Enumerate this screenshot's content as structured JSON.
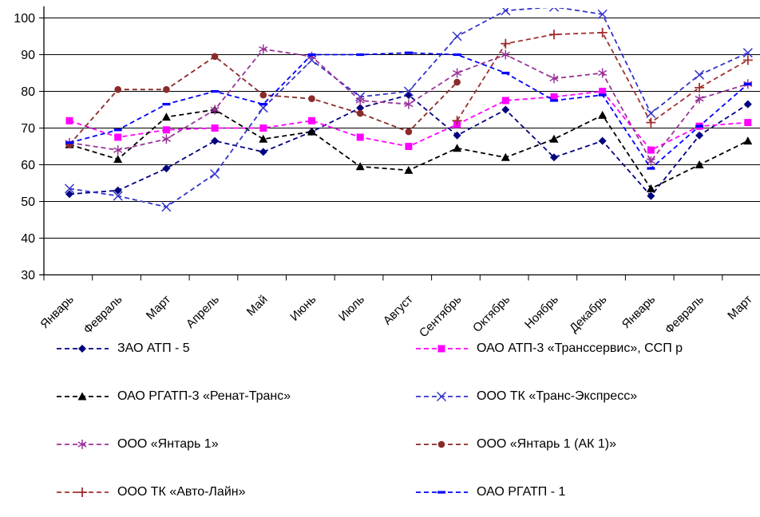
{
  "chart_data": {
    "type": "line",
    "title": "",
    "xlabel": "",
    "ylabel": "",
    "grid": true,
    "legend_position": "bottom-two-columns",
    "categories": [
      "Январь",
      "Февраль",
      "Март",
      "Апрель",
      "Май",
      "Июнь",
      "Июль",
      "Август",
      "Сентябрь",
      "Октябрь",
      "Ноябрь",
      "Декабрь",
      "Январь",
      "Февраль",
      "Март"
    ],
    "y_axis": {
      "min": 30,
      "max": 100,
      "step": 10,
      "ticks": [
        "30",
        "40",
        "50",
        "60",
        "70",
        "80",
        "90",
        "100"
      ]
    },
    "line_style": "dashed",
    "series": [
      {
        "name": "ЗАО АТП - 5",
        "color": "#000080",
        "marker": "diamond",
        "values": [
          52,
          53,
          59,
          66.5,
          63.5,
          69,
          75.5,
          79,
          68,
          75,
          62,
          66.5,
          51.5,
          68,
          76.5
        ]
      },
      {
        "name": "ОАО АТП-3 «Транссервис», ССП р",
        "color": "#FF00FF",
        "marker": "square",
        "values": [
          72,
          67.5,
          69.5,
          70,
          70,
          72,
          67.5,
          65,
          71,
          77.5,
          78.5,
          80,
          64,
          70.5,
          71.5
        ]
      },
      {
        "name": "ОАО РГАТП-3 «Ренат-Транс»",
        "color": "#000000",
        "marker": "triangle",
        "values": [
          65.5,
          61.5,
          73,
          75,
          67,
          69,
          59.5,
          58.5,
          64.5,
          62,
          67,
          73.5,
          53.5,
          60,
          66.5
        ]
      },
      {
        "name": "ООО ТК «Транс-Экспресс»",
        "color": "#3333CC",
        "marker": "x",
        "values": [
          53.5,
          51.5,
          48.5,
          57.5,
          75.5,
          88.5,
          78.5,
          80,
          95,
          102,
          103,
          101,
          74,
          84.5,
          90.5
        ]
      },
      {
        "name": "ООО «Янтарь 1»",
        "color": "#993399",
        "marker": "asterisk",
        "values": [
          66,
          64,
          67,
          75,
          91.5,
          89.5,
          77.5,
          76.5,
          85,
          90,
          83.5,
          85,
          61,
          78,
          82
        ]
      },
      {
        "name": "ООО «Янтарь 1 (АК 1)»",
        "color": "#8B2A2A",
        "marker": "circle",
        "values": [
          65.5,
          80.5,
          80.5,
          89.5,
          79,
          78,
          74,
          69,
          82.5,
          null,
          null,
          null,
          null,
          null,
          null
        ]
      },
      {
        "name": "ООО ТК «Авто-Лайн»",
        "color": "#A03030",
        "marker": "plus",
        "values": [
          null,
          null,
          null,
          null,
          null,
          null,
          null,
          null,
          72,
          93,
          95.5,
          96,
          71.5,
          81,
          88.5
        ]
      },
      {
        "name": "ОАО РГАТП - 1",
        "color": "#0000FF",
        "marker": "dash",
        "values": [
          66,
          69.5,
          76.5,
          80,
          76.5,
          90,
          90,
          90.5,
          90,
          85,
          77.5,
          79,
          59,
          70.5,
          82
        ]
      }
    ],
    "legend_columns": [
      [
        0,
        2,
        4,
        6
      ],
      [
        1,
        3,
        5,
        7
      ]
    ]
  }
}
